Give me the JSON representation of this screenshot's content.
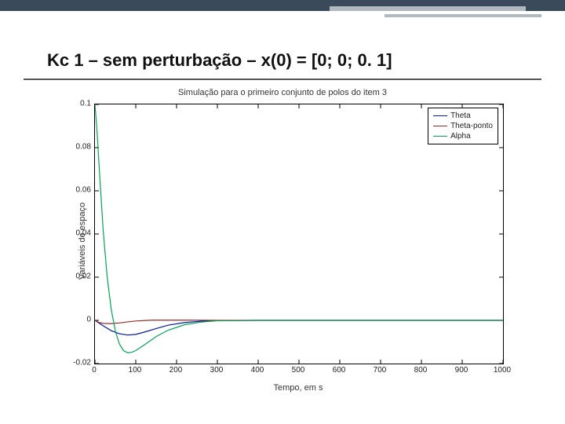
{
  "slide": {
    "title": "Kc 1 – sem perturbação – x(0) = [0; 0; 0. 1]"
  },
  "chart": {
    "type": "line",
    "title": "Simulação para o primeiro conjunto de polos do item 3",
    "xlabel": "Tempo, em s",
    "ylabel": "Variáveis de espaço",
    "background_color": "#ffffff",
    "axis_color": "#000000",
    "xlim": [
      0,
      1000
    ],
    "ylim": [
      -0.02,
      0.1
    ],
    "xticks": [
      0,
      100,
      200,
      300,
      400,
      500,
      600,
      700,
      800,
      900,
      1000
    ],
    "yticks": [
      -0.02,
      0,
      0.02,
      0.04,
      0.06,
      0.08,
      0.1
    ],
    "tick_fontsize": 10,
    "label_fontsize": 11,
    "title_fontsize": 11,
    "line_width": 1.2,
    "legend": {
      "position": "top-right",
      "entries": [
        "Theta",
        "Theta-ponto",
        "Alpha"
      ]
    },
    "series": [
      {
        "name": "Theta",
        "color": "#0018a8",
        "x": [
          0,
          20,
          40,
          60,
          80,
          100,
          120,
          150,
          180,
          220,
          260,
          300,
          400,
          600,
          1000
        ],
        "y": [
          0,
          -0.0025,
          -0.0048,
          -0.0062,
          -0.0068,
          -0.0065,
          -0.0055,
          -0.0038,
          -0.0022,
          -0.001,
          -0.0004,
          -0.0001,
          0,
          0,
          0
        ]
      },
      {
        "name": "Theta-ponto",
        "color": "#9c2a2a",
        "x": [
          0,
          10,
          20,
          40,
          60,
          80,
          100,
          140,
          180,
          220,
          300,
          500,
          1000
        ],
        "y": [
          0,
          -0.001,
          -0.0014,
          -0.0015,
          -0.0012,
          -0.0007,
          -0.0003,
          0.0001,
          0.0001,
          0.0001,
          0.0,
          0,
          0
        ]
      },
      {
        "name": "Alpha",
        "color": "#00a651",
        "x": [
          0,
          5,
          10,
          20,
          30,
          40,
          50,
          60,
          70,
          80,
          90,
          100,
          120,
          150,
          180,
          220,
          260,
          300,
          400,
          600,
          1000
        ],
        "y": [
          0.1,
          0.088,
          0.072,
          0.042,
          0.02,
          0.005,
          -0.005,
          -0.011,
          -0.014,
          -0.015,
          -0.0148,
          -0.014,
          -0.0115,
          -0.0075,
          -0.0045,
          -0.002,
          -0.0008,
          -0.0002,
          0,
          0,
          0
        ]
      }
    ]
  }
}
